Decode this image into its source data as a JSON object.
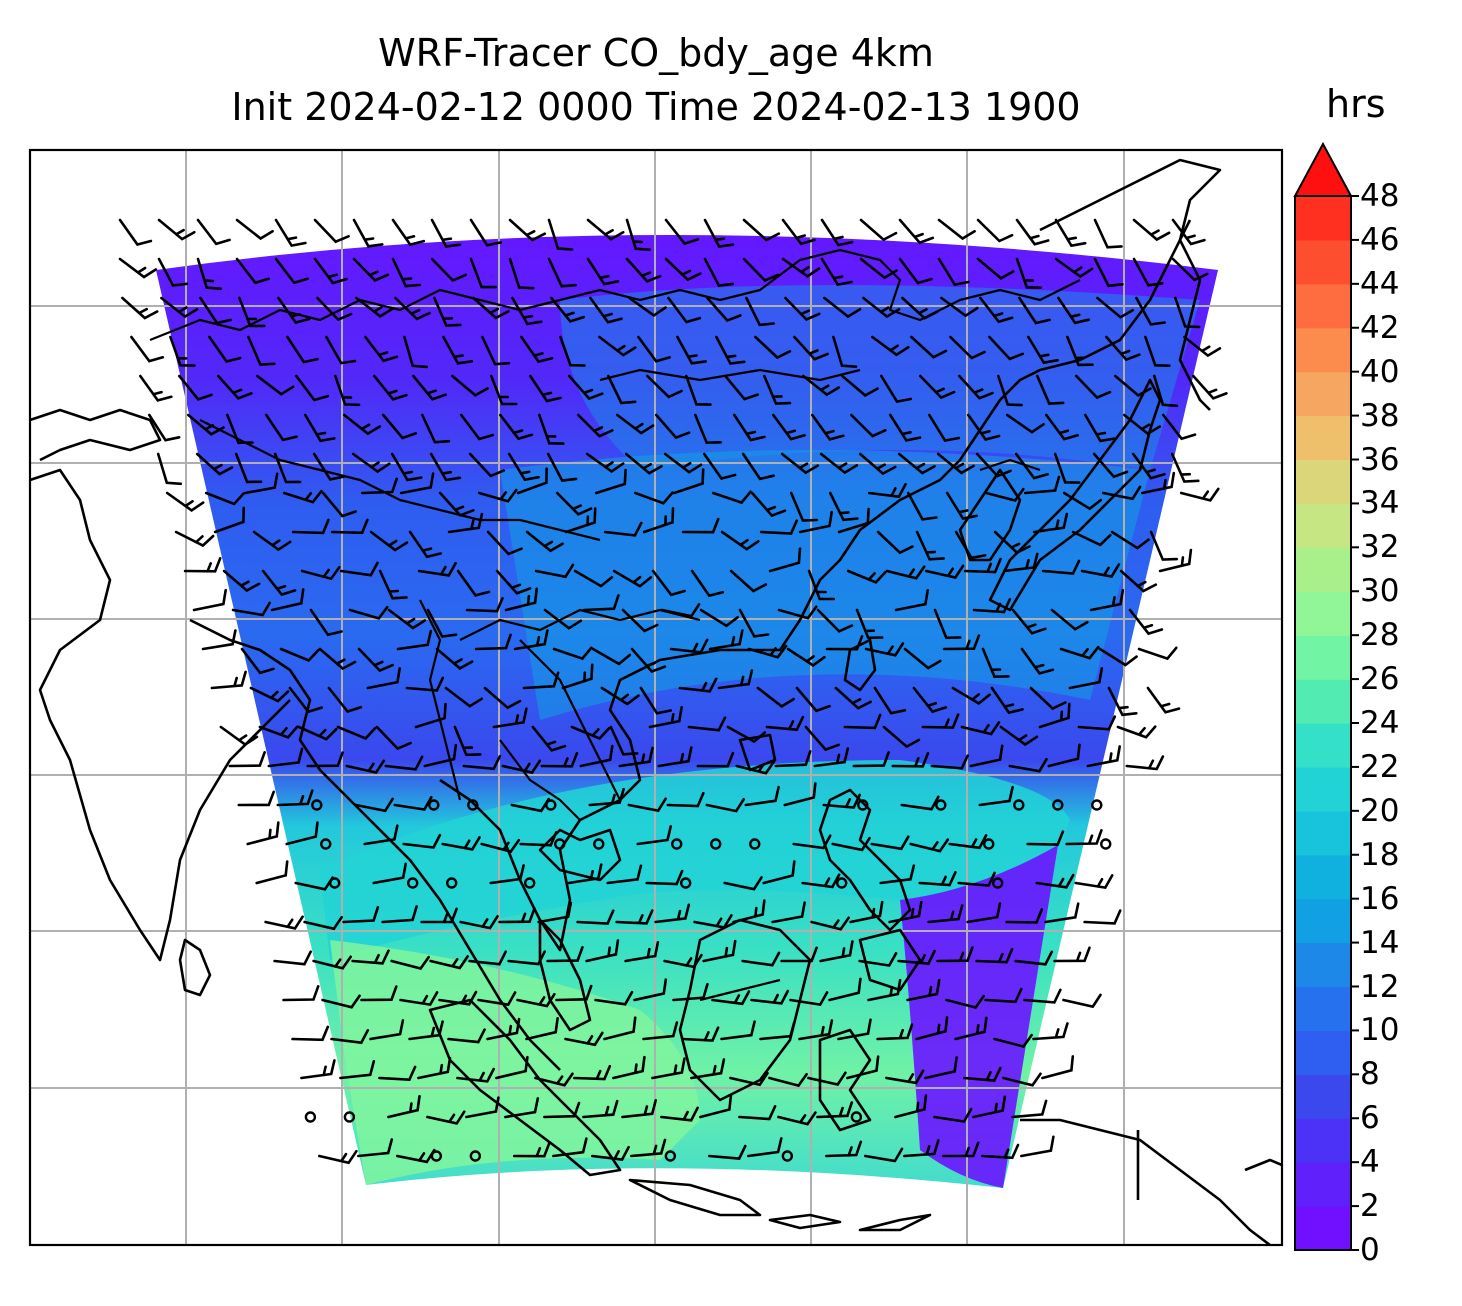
{
  "title": {
    "line1": "WRF-Tracer CO_bdy_age 4km",
    "line2": "Init 2024-02-12 0000 Time 2024-02-13 1900"
  },
  "colorbar": {
    "label": "hrs",
    "ticks": [
      "0",
      "2",
      "4",
      "6",
      "8",
      "10",
      "12",
      "14",
      "16",
      "18",
      "20",
      "22",
      "24",
      "26",
      "28",
      "30",
      "32",
      "34",
      "36",
      "38",
      "40",
      "42",
      "44",
      "46",
      "48"
    ],
    "extend": "max",
    "colors": [
      "#7110ff",
      "#5f20fb",
      "#4b32f6",
      "#3a48ee",
      "#2e5ff0",
      "#2672ee",
      "#1d88e8",
      "#12a0e4",
      "#10b1df",
      "#18c4dc",
      "#22d3d6",
      "#34e0c8",
      "#52ecb3",
      "#72f4a5",
      "#90f698",
      "#aaf08a",
      "#c6e684",
      "#dcd67a",
      "#efc06c",
      "#f6a660",
      "#fb8c4e",
      "#fd6d40",
      "#fe4e30",
      "#ff3020",
      "#ff1210"
    ],
    "overflow_color": "#ff1010"
  },
  "map": {
    "gridlines": true,
    "features": [
      "coastlines",
      "country borders",
      "wind barbs"
    ],
    "field": "CO_bdy_age"
  }
}
